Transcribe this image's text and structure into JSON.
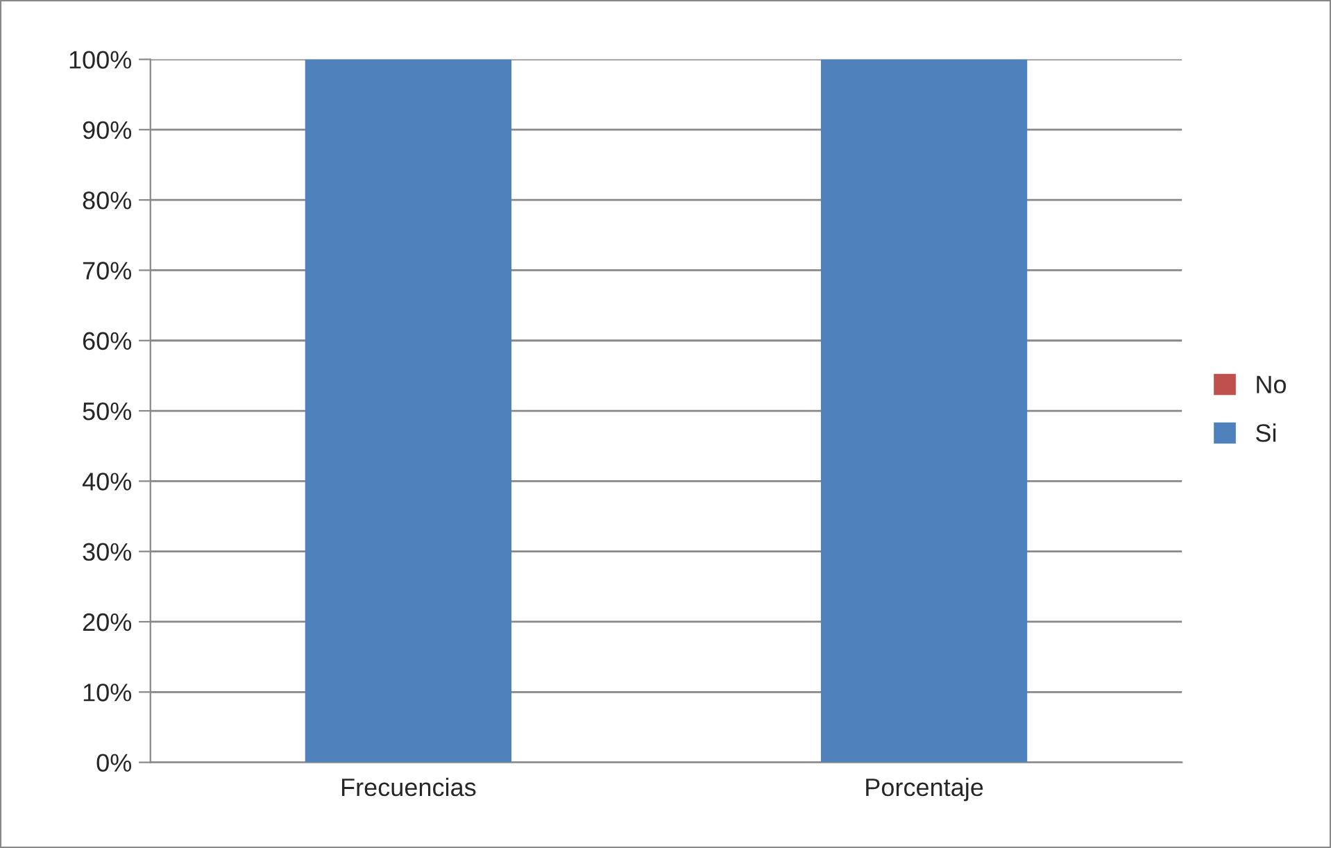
{
  "chart_data": {
    "type": "bar",
    "stacked": true,
    "categories": [
      "Frecuencias",
      "Porcentaje"
    ],
    "series": [
      {
        "name": "Si",
        "color": "#4f81bd",
        "values": [
          100,
          100
        ]
      },
      {
        "name": "No",
        "color": "#c0504d",
        "values": [
          0,
          0
        ]
      }
    ],
    "ylim": [
      0,
      100
    ],
    "yticks": [
      {
        "value": 0,
        "label": "0%"
      },
      {
        "value": 10,
        "label": "10%"
      },
      {
        "value": 20,
        "label": "20%"
      },
      {
        "value": 30,
        "label": "30%"
      },
      {
        "value": 40,
        "label": "40%"
      },
      {
        "value": 50,
        "label": "50%"
      },
      {
        "value": 60,
        "label": "60%"
      },
      {
        "value": 70,
        "label": "70%"
      },
      {
        "value": 80,
        "label": "80%"
      },
      {
        "value": 90,
        "label": "90%"
      },
      {
        "value": 100,
        "label": "100%"
      }
    ],
    "grid": "y",
    "legend": "right"
  }
}
